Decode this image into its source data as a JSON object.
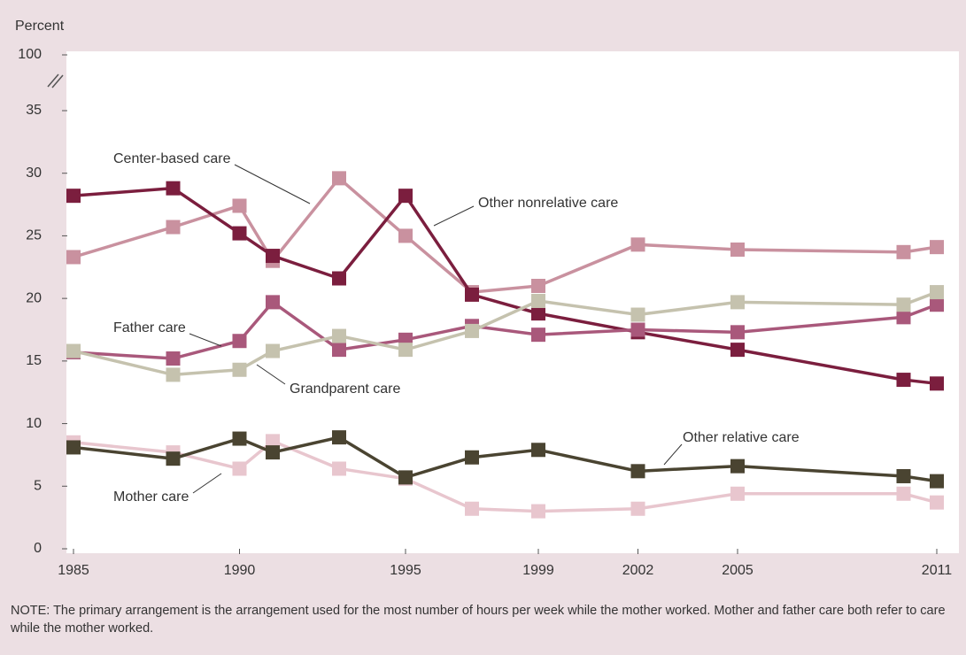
{
  "chart_data": {
    "type": "line",
    "ylabel": "Percent",
    "x": [
      1985,
      1988,
      1990,
      1991,
      1993,
      1995,
      1997,
      1999,
      2002,
      2005,
      2010,
      2011
    ],
    "xlim": [
      1985,
      2011
    ],
    "xticks": [
      1985,
      1990,
      1995,
      1999,
      2002,
      2005,
      2011
    ],
    "ylim": [
      0,
      100
    ],
    "yticks": [
      0,
      5,
      10,
      15,
      20,
      25,
      30,
      35,
      100
    ],
    "axis_break": true,
    "series": [
      {
        "name": "Center-based care",
        "color": "#c9919f",
        "values": [
          23.3,
          25.7,
          27.4,
          23.0,
          29.6,
          25.0,
          20.5,
          21.0,
          24.3,
          23.9,
          23.7,
          24.1
        ]
      },
      {
        "name": "Other nonrelative care",
        "color": "#7b1e3e",
        "values": [
          28.2,
          28.8,
          25.2,
          23.4,
          21.6,
          28.2,
          20.3,
          18.8,
          17.3,
          15.9,
          13.5,
          13.2
        ]
      },
      {
        "name": "Father care",
        "color": "#a9587b",
        "values": [
          15.7,
          15.2,
          16.6,
          19.7,
          15.9,
          16.7,
          17.8,
          17.1,
          17.5,
          17.3,
          18.5,
          19.5
        ]
      },
      {
        "name": "Grandparent care",
        "color": "#c5c2ae",
        "values": [
          15.8,
          13.9,
          14.3,
          15.8,
          17.0,
          15.9,
          17.4,
          19.8,
          18.7,
          19.7,
          19.5,
          20.5
        ]
      },
      {
        "name": "Mother care",
        "color": "#e8c6ce",
        "values": [
          8.5,
          7.7,
          6.4,
          8.6,
          6.4,
          5.6,
          3.2,
          3.0,
          3.2,
          4.4,
          4.4,
          3.7
        ]
      },
      {
        "name": "Other relative care",
        "color": "#4a4431",
        "values": [
          8.1,
          7.2,
          8.8,
          7.7,
          8.9,
          5.7,
          7.3,
          7.9,
          6.2,
          6.6,
          5.8,
          5.4
        ]
      }
    ],
    "note": "NOTE: The primary arrangement is the arrangement used for the most number of hours per week while the mother worked. Mother and father care both refer to care while the mother worked."
  }
}
